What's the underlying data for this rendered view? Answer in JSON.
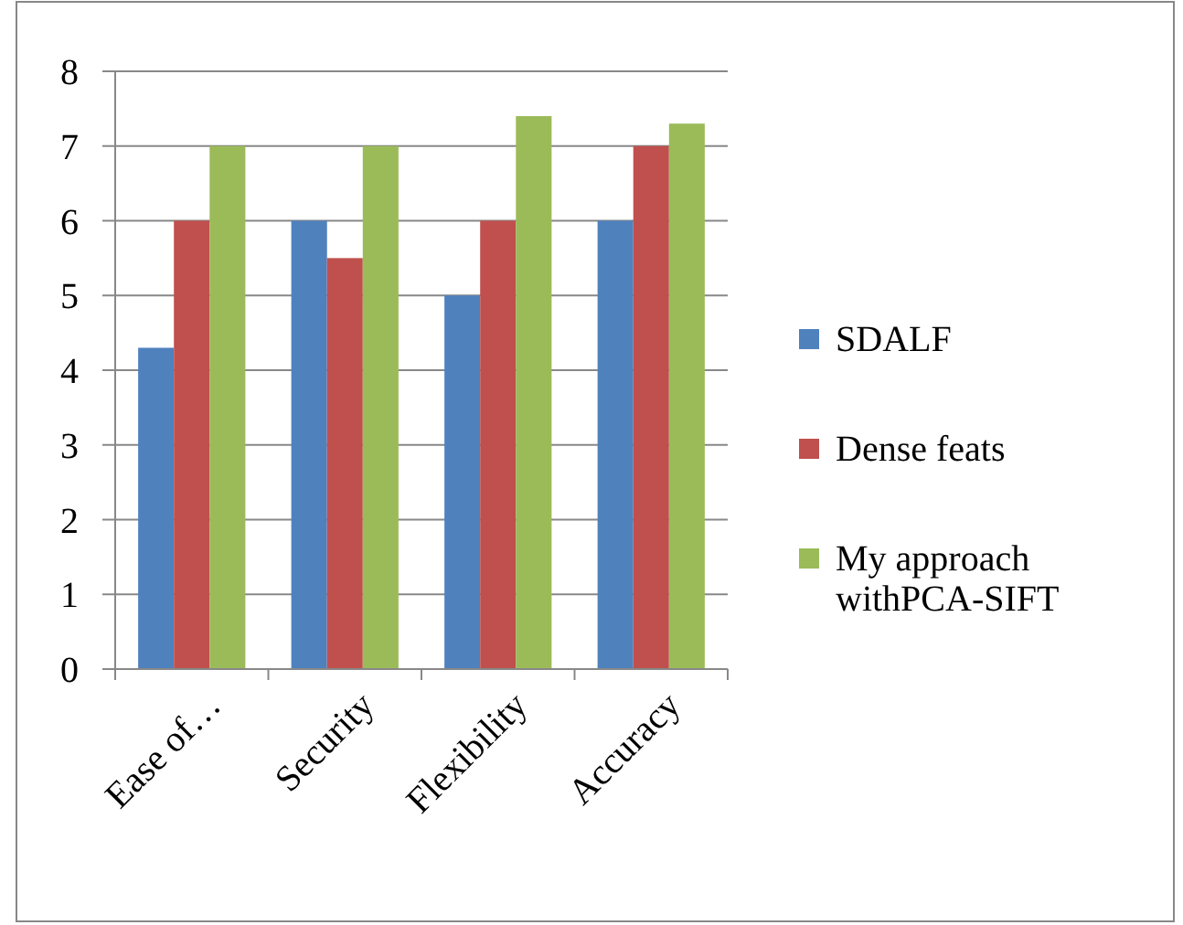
{
  "chart_data": {
    "type": "bar",
    "categories": [
      "Ease of…",
      "Security",
      "Flexibility",
      "Accuracy"
    ],
    "series": [
      {
        "name": "SDALF",
        "color": "#4f81bd",
        "values": [
          4.3,
          6,
          5,
          6
        ]
      },
      {
        "name": "Dense feats",
        "color": "#c0504d",
        "values": [
          6,
          5.5,
          6,
          7
        ]
      },
      {
        "name": "My approach withPCA-SIFT",
        "color": "#9bbb59",
        "values": [
          7,
          7,
          7.4,
          7.3
        ]
      }
    ],
    "ylim": [
      0,
      8
    ],
    "yticks": [
      0,
      1,
      2,
      3,
      4,
      5,
      6,
      7,
      8
    ],
    "grid": "y",
    "legend": "right"
  }
}
